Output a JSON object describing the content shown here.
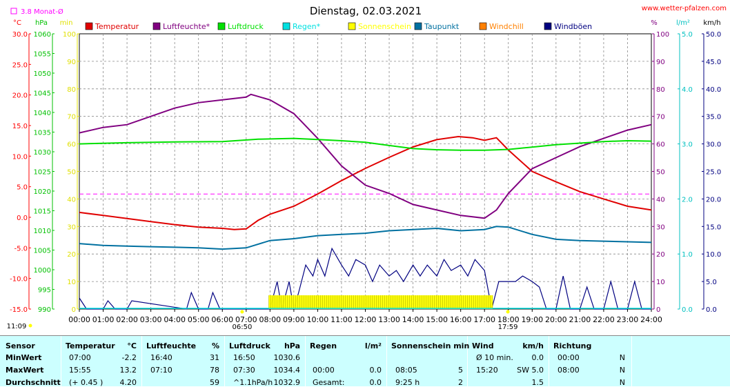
{
  "title": "Dienstag, 02.03.2021",
  "website": "www.wetter-pfalzen.com",
  "monthly_avg_label": "3.8 Monat-Ø",
  "units_left": [
    "°C",
    "hPa",
    "min"
  ],
  "units_right": [
    "%",
    "l/m²",
    "km/h"
  ],
  "sun_times": {
    "rise": "06:50",
    "set": "17:59",
    "moon": "11:09"
  },
  "colors": {
    "temperature": "#e00000",
    "humidity": "#800080",
    "pressure": "#00e000",
    "rain": "#00e0e0",
    "sunshine": "#ffff00",
    "dewpoint": "#0070a0",
    "windchill": "#ff8000",
    "gusts": "#000080",
    "wind": "#0000c0",
    "axis_temp": "#ff0000",
    "axis_hpa": "#00c000",
    "axis_min": "#e0e000",
    "axis_pct": "#800080",
    "axis_rain": "#00c0c0",
    "axis_kmh": "#000080"
  },
  "chart_data": {
    "type": "line",
    "title": "Dienstag, 02.03.2021",
    "legend": [
      "Temperatur",
      "Luftfeuchte*",
      "Luftdruck",
      "Regen*",
      "Sonnenschein",
      "Taupunkt",
      "Windchill",
      "Windböen"
    ],
    "legend_colors": [
      "#e00000",
      "#800080",
      "#00e000",
      "#00e0e0",
      "#ffff00",
      "#0070a0",
      "#ff8000",
      "#000080"
    ],
    "x_ticks": [
      "00:00",
      "01:00",
      "02:00",
      "03:00",
      "04:00",
      "05:00",
      "06:00",
      "07:00",
      "08:00",
      "09:00",
      "10:00",
      "11:00",
      "12:00",
      "13:00",
      "14:00",
      "15:00",
      "16:00",
      "17:00",
      "18:00",
      "19:00",
      "20:00",
      "21:00",
      "22:00",
      "23:00",
      "24:00"
    ],
    "axes": {
      "temperature_c": {
        "range": [
          -15,
          30
        ],
        "ticks": [
          "30.0",
          "25.0",
          "20.0",
          "15.0",
          "10.0",
          "5.0",
          "0.0",
          "-5.0",
          "-10.0",
          "-15.0"
        ]
      },
      "pressure_hpa": {
        "range": [
          990,
          1060
        ],
        "ticks": [
          "1060",
          "1055",
          "1050",
          "1045",
          "1040",
          "1035",
          "1030",
          "1025",
          "1020",
          "1015",
          "1010",
          "1005",
          "1000",
          "995",
          "990"
        ]
      },
      "sunshine_min": {
        "range": [
          0,
          100
        ],
        "ticks": [
          "100",
          "90",
          "80",
          "70",
          "60",
          "50",
          "40",
          "30",
          "20",
          "10",
          "0"
        ]
      },
      "humidity_pct": {
        "range": [
          0,
          100
        ],
        "ticks": [
          "100",
          "90",
          "80",
          "70",
          "60",
          "50",
          "40",
          "30",
          "20",
          "10",
          "0"
        ]
      },
      "rain_lm2": {
        "range": [
          0,
          5
        ],
        "ticks": [
          "5.0",
          "4.0",
          "3.0",
          "2.0",
          "1.0",
          "0.0"
        ]
      },
      "wind_kmh": {
        "range": [
          0,
          50
        ],
        "ticks": [
          "50.0",
          "45.0",
          "40.0",
          "35.0",
          "30.0",
          "25.0",
          "20.0",
          "15.0",
          "10.0",
          "5.0",
          "0.0"
        ]
      }
    },
    "monthly_avg_temp": 3.8,
    "series": [
      {
        "name": "Temperatur",
        "axis": "temperature_c",
        "x": [
          0,
          1,
          2,
          3,
          4,
          5,
          6,
          6.5,
          7,
          7.5,
          8,
          9,
          10,
          11,
          12,
          13,
          14,
          15,
          15.9,
          16.5,
          17,
          17.5,
          18,
          19,
          20,
          21,
          22,
          23,
          24
        ],
        "values": [
          0.8,
          0.3,
          -0.2,
          -0.7,
          -1.2,
          -1.6,
          -1.8,
          -2.0,
          -1.9,
          -0.5,
          0.5,
          1.8,
          3.8,
          6.0,
          8.0,
          9.8,
          11.5,
          12.7,
          13.2,
          13.0,
          12.6,
          13.0,
          11.0,
          7.5,
          5.8,
          4.2,
          3.0,
          1.8,
          1.2
        ]
      },
      {
        "name": "Luftfeuchte*",
        "axis": "humidity_pct",
        "x": [
          0,
          1,
          2,
          3,
          4,
          5,
          6,
          7,
          7.2,
          8,
          9,
          10,
          11,
          12,
          13,
          14,
          15,
          16,
          17,
          17.5,
          18,
          19,
          20,
          21,
          22,
          23,
          24
        ],
        "values": [
          64,
          66,
          67,
          70,
          73,
          75,
          76,
          77,
          78,
          76,
          71,
          62,
          52,
          45,
          42,
          38,
          36,
          34,
          33,
          36,
          42,
          51,
          55,
          59,
          62,
          65,
          67
        ]
      },
      {
        "name": "Luftdruck",
        "axis": "pressure_hpa",
        "x": [
          0,
          2,
          4,
          6,
          7.5,
          9,
          10,
          11,
          12,
          13,
          14,
          15,
          16,
          17,
          18,
          19,
          20,
          21,
          22,
          23,
          24
        ],
        "values": [
          1032.0,
          1032.3,
          1032.5,
          1032.6,
          1033.2,
          1033.4,
          1033.1,
          1032.8,
          1032.4,
          1031.6,
          1030.8,
          1030.5,
          1030.4,
          1030.4,
          1030.6,
          1031.2,
          1031.8,
          1032.2,
          1032.6,
          1032.8,
          1032.7
        ]
      },
      {
        "name": "Taupunkt",
        "axis": "temperature_c",
        "x": [
          0,
          1,
          2,
          3,
          4,
          5,
          6,
          7,
          8,
          9,
          10,
          11,
          12,
          13,
          14,
          15,
          16,
          17,
          17.5,
          18,
          19,
          20,
          21,
          22,
          23,
          24
        ],
        "values": [
          -4.3,
          -4.6,
          -4.7,
          -4.8,
          -4.9,
          -5.0,
          -5.2,
          -5.0,
          -3.8,
          -3.5,
          -3.0,
          -2.8,
          -2.6,
          -2.2,
          -2.0,
          -1.8,
          -2.2,
          -2.0,
          -1.5,
          -1.6,
          -2.8,
          -3.6,
          -3.8,
          -3.9,
          -4.0,
          -4.1
        ]
      },
      {
        "name": "Windböen",
        "axis": "wind_kmh",
        "x": [
          0,
          0.3,
          0.6,
          1,
          1.2,
          1.5,
          1.8,
          2,
          2.2,
          4.5,
          4.7,
          5,
          5.4,
          5.6,
          5.9,
          6.5,
          7,
          7.5,
          8,
          8.3,
          8.5,
          8.8,
          9,
          9.2,
          9.5,
          9.8,
          10,
          10.3,
          10.6,
          11,
          11.3,
          11.6,
          12,
          12.3,
          12.6,
          13,
          13.3,
          13.6,
          14,
          14.3,
          14.6,
          15,
          15.3,
          15.6,
          16,
          16.3,
          16.6,
          17,
          17.3,
          17.6,
          18,
          18.3,
          18.6,
          19,
          19.3,
          19.6,
          20,
          20.3,
          20.6,
          21,
          21.3,
          21.6,
          22,
          22.3,
          22.6,
          23,
          23.3,
          23.6,
          24
        ],
        "values": [
          2,
          0,
          0,
          0,
          1.5,
          0,
          0,
          0,
          1.5,
          0,
          3,
          0,
          0,
          3,
          0,
          0,
          0,
          0,
          0,
          5,
          0,
          5,
          0,
          3,
          8,
          6,
          9,
          6,
          11,
          8,
          6,
          9,
          8,
          5,
          8,
          6,
          7,
          5,
          8,
          6,
          8,
          6,
          9,
          7,
          8,
          6,
          9,
          7,
          0,
          5,
          5,
          5,
          6,
          5,
          4,
          0,
          0,
          6,
          0,
          0,
          4,
          0,
          0,
          5,
          0,
          0,
          5,
          0,
          0
        ]
      },
      {
        "name": "Sonnenschein",
        "axis": "sunshine_min",
        "type": "bar",
        "from": 7.95,
        "to": 17.35,
        "value": 5
      }
    ]
  },
  "stats": {
    "headers": {
      "sensor": "Sensor",
      "temp": "Temperatur",
      "temp_unit": "°C",
      "hum": "Luftfeuchte",
      "hum_unit": "%",
      "press": "Luftdruck",
      "press_unit": "hPa",
      "rain": "Regen",
      "rain_unit": "l/m²",
      "sun": "Sonnenschein min",
      "wind": "Wind",
      "wind_unit": "km/h",
      "dir": "Richtung"
    },
    "rows": [
      {
        "label": "MinWert",
        "temp_time": "07:00",
        "temp_val": "-2.2",
        "hum_time": "16:40",
        "hum_val": "31",
        "press_time": "16:50",
        "press_val": "1030.6",
        "rain_time": "",
        "rain_val": "",
        "sun_time": "",
        "sun_val": "",
        "wind_time": "Ø 10 min.",
        "wind_val": "0.0",
        "dir_time": "00:00",
        "dir_val": "N"
      },
      {
        "label": "MaxWert",
        "temp_time": "15:55",
        "temp_val": "13.2",
        "hum_time": "07:10",
        "hum_val": "78",
        "press_time": "07:30",
        "press_val": "1034.4",
        "rain_time": "00:00",
        "rain_val": "0.0",
        "sun_time": "08:05",
        "sun_val": "5",
        "wind_time": "15:20",
        "wind_val": "SW 5.0",
        "dir_time": "08:00",
        "dir_val": "N"
      },
      {
        "label": "Durchschnitt",
        "temp_time": "(+ 0.45 )",
        "temp_val": "4.20",
        "hum_time": "",
        "hum_val": "59",
        "press_time": "^1.1hPa/h",
        "press_val": "1032.9",
        "rain_time": "Gesamt:",
        "rain_val": "0.0",
        "sun_time": "9:25 h",
        "sun_val": "2",
        "wind_time": "",
        "wind_val": "1.5",
        "dir_time": "",
        "dir_val": "N"
      }
    ]
  }
}
